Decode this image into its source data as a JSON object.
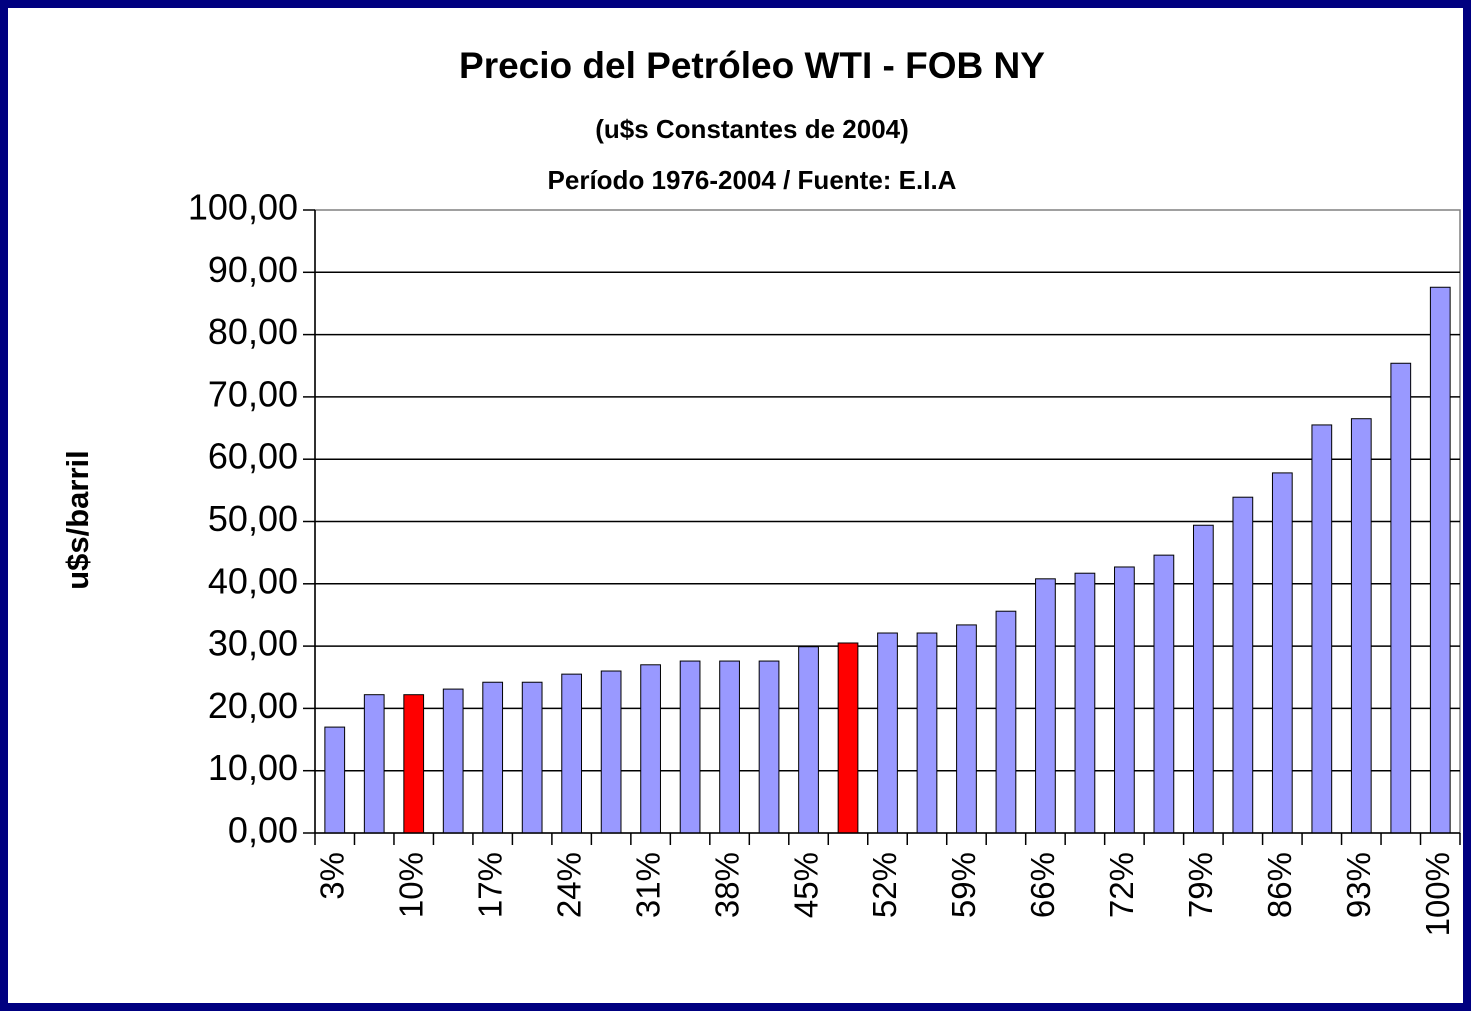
{
  "chart_data": {
    "type": "bar",
    "title": "Precio del Petróleo WTI - FOB NY",
    "subtitle": "(u$s Constantes de 2004)",
    "subtitle2": "Período 1976-2004  /  Fuente: E.I.A",
    "y_label": "u$s/barril",
    "categories": [
      "3%",
      null,
      "10%",
      null,
      "17%",
      null,
      "24%",
      null,
      "31%",
      null,
      "38%",
      null,
      "45%",
      null,
      "52%",
      null,
      "59%",
      null,
      "66%",
      null,
      "72%",
      null,
      "79%",
      null,
      "86%",
      null,
      "93%",
      null,
      "100%"
    ],
    "values": [
      17.0,
      22.2,
      22.2,
      23.1,
      24.2,
      24.2,
      25.5,
      26.0,
      27.0,
      27.6,
      27.6,
      27.6,
      29.9,
      30.5,
      32.1,
      32.1,
      33.4,
      35.6,
      40.8,
      41.7,
      42.7,
      44.6,
      49.4,
      53.9,
      57.8,
      65.5,
      66.5,
      75.4,
      87.6
    ],
    "colors": [
      "#9999ff",
      "#9999ff",
      "#ff0000",
      "#9999ff",
      "#9999ff",
      "#9999ff",
      "#9999ff",
      "#9999ff",
      "#9999ff",
      "#9999ff",
      "#9999ff",
      "#9999ff",
      "#9999ff",
      "#ff0000",
      "#9999ff",
      "#9999ff",
      "#9999ff",
      "#9999ff",
      "#9999ff",
      "#9999ff",
      "#9999ff",
      "#9999ff",
      "#9999ff",
      "#9999ff",
      "#9999ff",
      "#9999ff",
      "#9999ff",
      "#9999ff",
      "#9999ff"
    ],
    "ylim": [
      0,
      100
    ],
    "yticks": [
      {
        "value": 0,
        "label": "0,00"
      },
      {
        "value": 10,
        "label": "10,00"
      },
      {
        "value": 20,
        "label": "20,00"
      },
      {
        "value": 30,
        "label": "30,00"
      },
      {
        "value": 40,
        "label": "40,00"
      },
      {
        "value": 50,
        "label": "50,00"
      },
      {
        "value": 60,
        "label": "60,00"
      },
      {
        "value": 70,
        "label": "70,00"
      },
      {
        "value": 80,
        "label": "80,00"
      },
      {
        "value": 90,
        "label": "90,00"
      },
      {
        "value": 100,
        "label": "100,00"
      }
    ],
    "grid": true
  }
}
